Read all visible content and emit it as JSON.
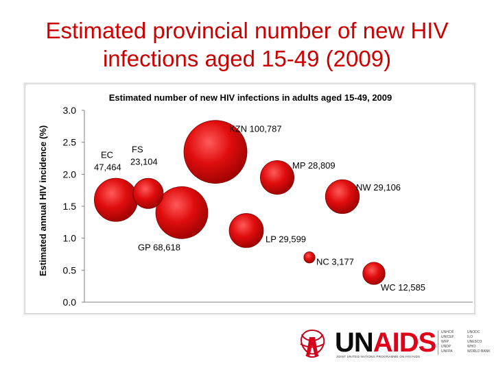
{
  "slide": {
    "title_line1": "Estimated provincial number of new HIV",
    "title_line2": "infections aged 15-49 (2009)"
  },
  "chart_data": {
    "type": "scatter",
    "title": "Estimated number of new HIV infections in adults aged 15-49, 2009",
    "xlabel": "",
    "ylabel": "Estimated annual HIV incidence (%)",
    "ylim": [
      0,
      3.0
    ],
    "yticks": [
      "0.0",
      "0.5",
      "1.0",
      "1.5",
      "2.0",
      "2.5",
      "3.0"
    ],
    "grid": false,
    "legend": "none",
    "bubble_color": "#cc0000",
    "points": [
      {
        "name": "KZN",
        "label": "KZN 100,787",
        "y": 2.35,
        "size": 100787
      },
      {
        "name": "EC",
        "label_line1": "EC",
        "label_line2": "47,464",
        "y": 1.6,
        "size": 47464
      },
      {
        "name": "FS",
        "label_line1": "FS",
        "label_line2": "23,104",
        "y": 1.7,
        "size": 23104
      },
      {
        "name": "GP",
        "label": "GP 68,618",
        "y": 1.4,
        "size": 68618
      },
      {
        "name": "MP",
        "label": "MP 28,809",
        "y": 1.95,
        "size": 28809
      },
      {
        "name": "LP",
        "label": "LP 29,599",
        "y": 1.12,
        "size": 29599
      },
      {
        "name": "NW",
        "label": "NW 29,106",
        "y": 1.65,
        "size": 29106
      },
      {
        "name": "NC",
        "label": "NC 3,177",
        "y": 0.7,
        "size": 3177
      },
      {
        "name": "WC",
        "label": "WC 12,585",
        "y": 0.45,
        "size": 12585
      }
    ]
  },
  "logo": {
    "word_un": "UN",
    "word_aids": "AIDS",
    "tagline": "JOINT UNITED NATIONS PROGRAMME ON HIV/AIDS",
    "cosponsors_col1": [
      "UNHCR",
      "UNICEF",
      "WFP",
      "UNDP",
      "UNFPA"
    ],
    "cosponsors_col2": [
      "UNODC",
      "ILO",
      "UNESCO",
      "WHO",
      "WORLD BANK"
    ]
  }
}
